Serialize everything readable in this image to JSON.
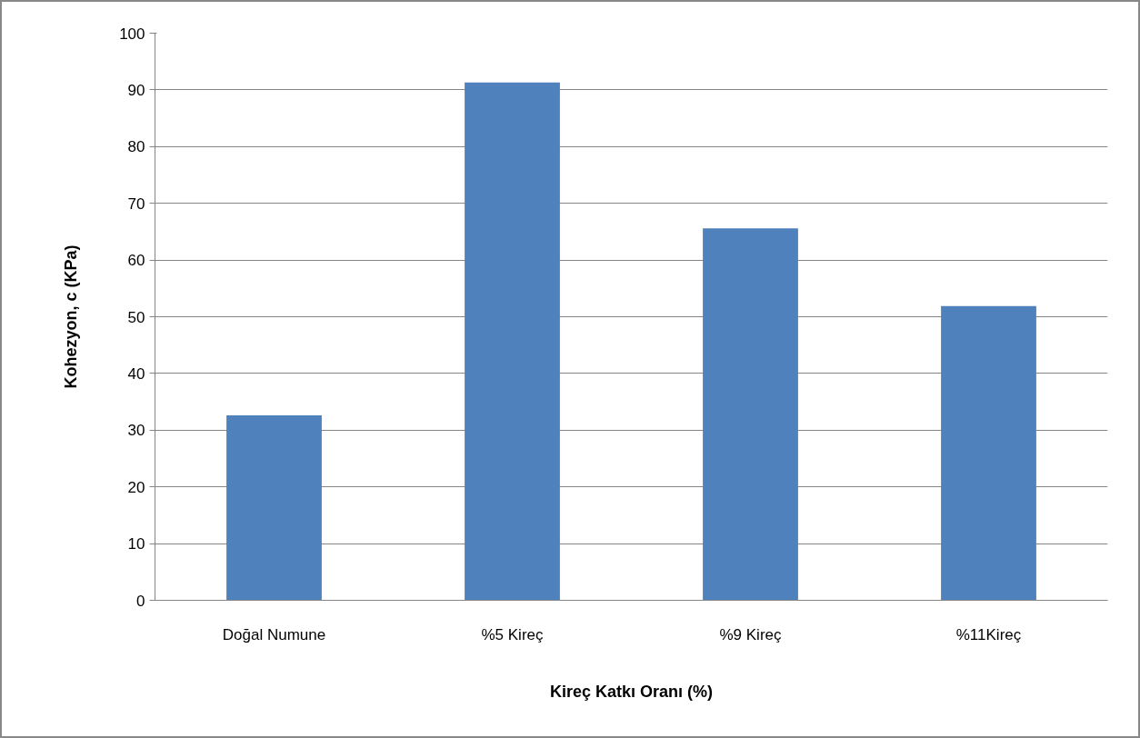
{
  "chart_data": {
    "type": "bar",
    "xlabel": "Kireç Katkı Oranı (%)",
    "ylabel": "Kohezyon, c (KPa)",
    "categories": [
      "Doğal Numune",
      "%5 Kireç",
      "%9 Kireç",
      "%11Kireç"
    ],
    "values": [
      32.6,
      91.3,
      65.6,
      51.9
    ],
    "color": "#4f81bd",
    "ylim": [
      0,
      100
    ],
    "yticks": [
      0,
      10,
      20,
      30,
      40,
      50,
      60,
      70,
      80,
      90,
      100
    ],
    "grid": "y"
  }
}
